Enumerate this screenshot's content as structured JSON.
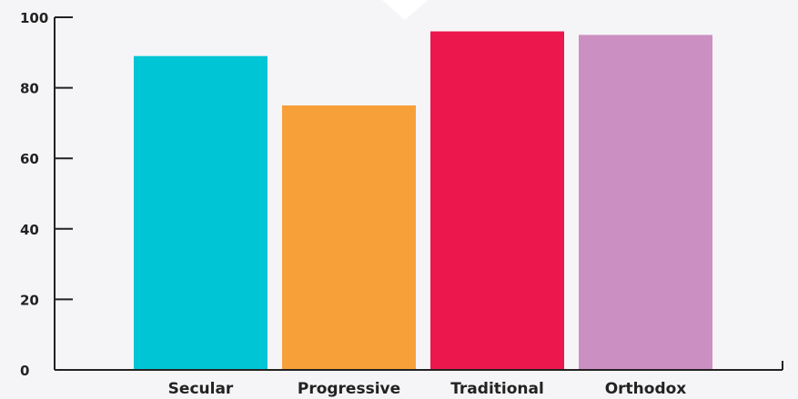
{
  "chart_data": {
    "type": "bar",
    "categories": [
      "Secular",
      "Progressive",
      "Traditional",
      "Orthodox"
    ],
    "values": [
      89,
      75,
      96,
      95
    ],
    "colors": [
      "#00c5d4",
      "#f7a03a",
      "#ec174c",
      "#cc8fc2"
    ],
    "ylim": [
      0,
      100
    ],
    "yticks": [
      0,
      20,
      40,
      60,
      80,
      100
    ],
    "ytick_labels": [
      "0",
      "20",
      "40",
      "60",
      "80",
      "100"
    ],
    "grid": false,
    "title": "",
    "xlabel": "",
    "ylabel": ""
  },
  "colors": {
    "background": "#f5f5f7",
    "axis": "#222222",
    "text": "#222222",
    "decoration": "#ffffff"
  }
}
